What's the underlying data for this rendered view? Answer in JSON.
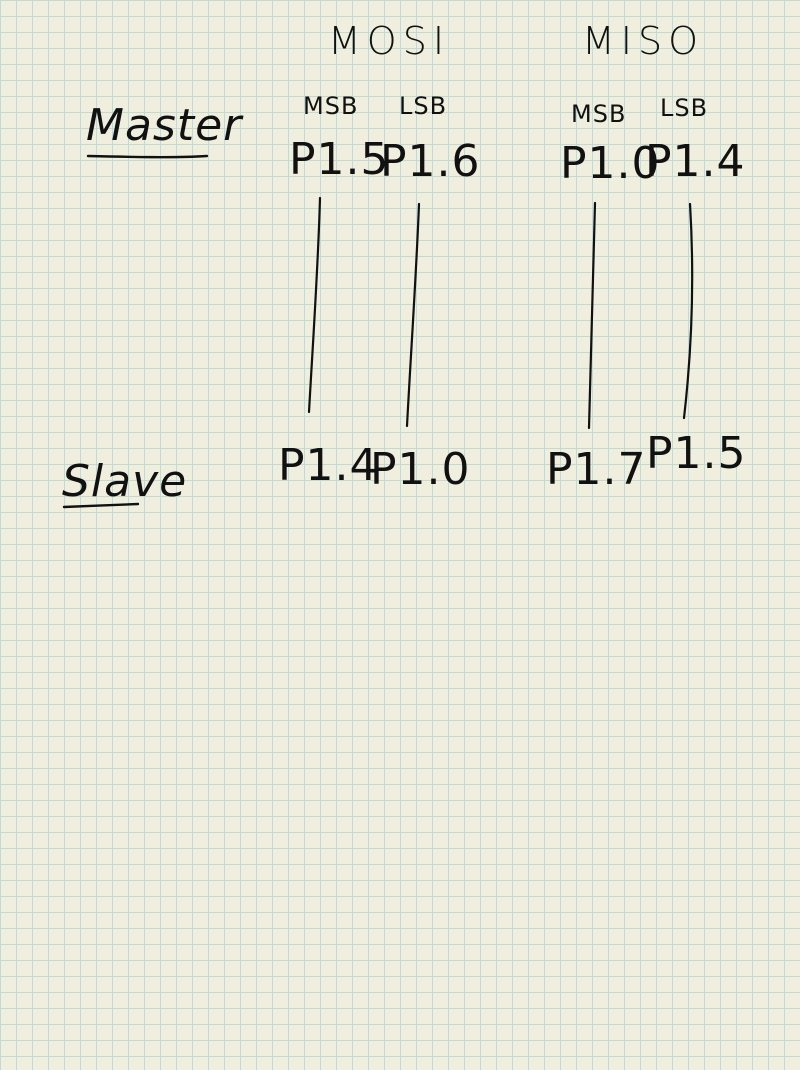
{
  "headers": {
    "mosi": "MOSI",
    "miso": "MISO"
  },
  "master": {
    "label": "Master",
    "mosi": {
      "msb_label": "MSB",
      "lsb_label": "LSB",
      "msb_pin": "P1.5",
      "lsb_pin": "P1.6"
    },
    "miso": {
      "msb_label": "MSB",
      "lsb_label": "LSB",
      "msb_pin": "P1.0",
      "lsb_pin": "P1.4"
    }
  },
  "slave": {
    "label": "Slave",
    "mosi": {
      "msb_pin": "P1.4",
      "lsb_pin": "P1.0"
    },
    "miso": {
      "msb_pin": "P1.7",
      "lsb_pin": "P1.5"
    }
  }
}
